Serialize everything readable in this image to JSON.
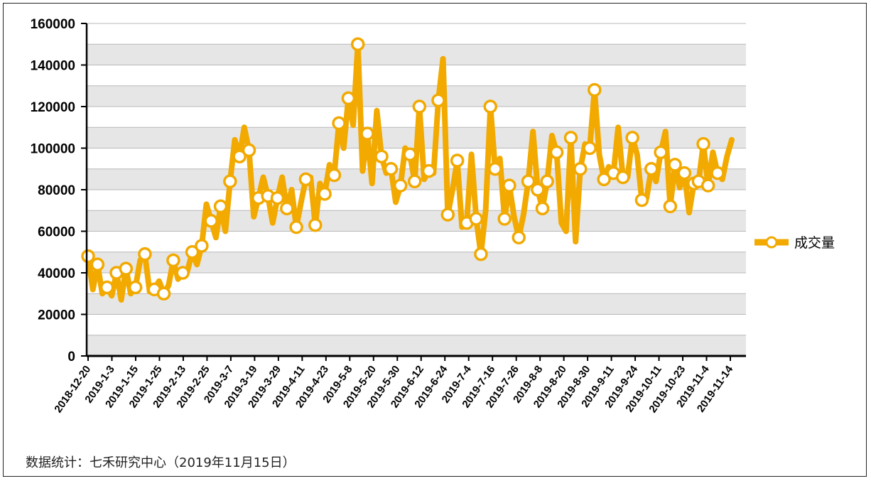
{
  "chart_data": {
    "type": "line",
    "title": "",
    "xlabel": "",
    "ylabel": "",
    "ylim": [
      0,
      160000
    ],
    "yticks": [
      0,
      20000,
      40000,
      60000,
      80000,
      100000,
      120000,
      140000,
      160000
    ],
    "grid": true,
    "legend_position": "right",
    "colors": {
      "line": "#F2A900",
      "marker_fill": "#FFFFFF",
      "band": "#E6E6E6"
    },
    "x_tick_labels": [
      "2018-12-20",
      "2019-1-3",
      "2019-1-15",
      "2019-1-25",
      "2019-2-13",
      "2019-2-25",
      "2019-3-7",
      "2019-3-19",
      "2019-3-29",
      "2019-4-11",
      "2019-4-23",
      "2019-5-8",
      "2019-5-20",
      "2019-5-30",
      "2019-6-12",
      "2019-6-24",
      "2019-7-4",
      "2019-7-16",
      "2019-7-26",
      "2019-8-8",
      "2019-8-20",
      "2019-8-30",
      "2019-9-11",
      "2019-9-24",
      "2019-10-11",
      "2019-10-23",
      "2019-11-4",
      "2019-11-14"
    ],
    "series": [
      {
        "name": "成交量",
        "values": [
          48000,
          32000,
          44000,
          30000,
          33000,
          29000,
          40000,
          27000,
          42000,
          30000,
          33000,
          46000,
          49000,
          31000,
          32000,
          36000,
          30000,
          34000,
          46000,
          37000,
          40000,
          41000,
          50000,
          44000,
          53000,
          73000,
          65000,
          57000,
          72000,
          60000,
          84000,
          104000,
          96000,
          110000,
          99000,
          67000,
          76000,
          86000,
          77000,
          64000,
          76000,
          86000,
          71000,
          80000,
          62000,
          74000,
          85000,
          86000,
          63000,
          83000,
          78000,
          92000,
          87000,
          112000,
          100000,
          124000,
          111000,
          150000,
          89000,
          107000,
          83000,
          118000,
          96000,
          88000,
          90000,
          74000,
          82000,
          100000,
          97000,
          84000,
          120000,
          85000,
          89000,
          88000,
          123000,
          143000,
          68000,
          80000,
          94000,
          62000,
          64000,
          97000,
          66000,
          49000,
          70000,
          120000,
          90000,
          95000,
          66000,
          82000,
          67000,
          57000,
          68000,
          84000,
          108000,
          80000,
          71000,
          84000,
          106000,
          98000,
          64000,
          60000,
          105000,
          55000,
          90000,
          102000,
          100000,
          128000,
          97000,
          85000,
          91000,
          88000,
          110000,
          86000,
          86000,
          105000,
          97000,
          75000,
          76000,
          90000,
          84000,
          98000,
          108000,
          72000,
          92000,
          81000,
          88000,
          69000,
          83000,
          84000,
          102000,
          82000,
          98000,
          88000,
          85000,
          96000,
          104000
        ],
        "marker_indices": [
          0,
          2,
          4,
          6,
          8,
          10,
          12,
          14,
          16,
          18,
          20,
          22,
          24,
          26,
          28,
          30,
          32,
          34,
          36,
          38,
          40,
          42,
          44,
          46,
          48,
          50,
          52,
          53,
          55,
          57,
          59,
          62,
          64,
          66,
          68,
          69,
          70,
          72,
          74,
          76,
          78,
          80,
          82,
          83,
          85,
          86,
          88,
          89,
          91,
          93,
          95,
          96,
          97,
          99,
          102,
          104,
          106,
          107,
          109,
          111,
          113,
          115,
          117,
          119,
          121,
          123,
          124,
          126,
          128,
          129,
          130,
          131,
          133
        ]
      }
    ]
  },
  "legend": {
    "label": "成交量"
  },
  "source": "数据统计：七禾研究中心（2019年11月15日）"
}
